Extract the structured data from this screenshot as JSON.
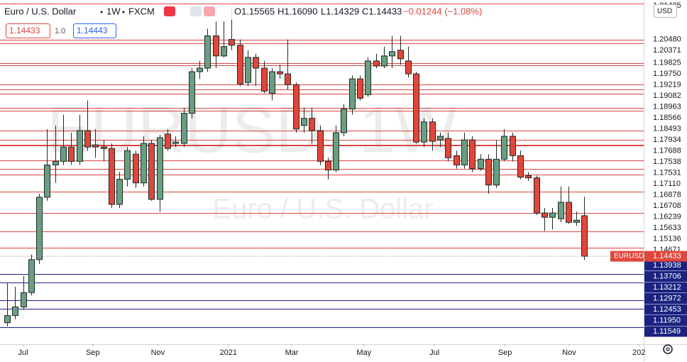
{
  "chart_data": {
    "type": "candlestick",
    "symbol_name": "Euro / U.S. Dollar",
    "interval": "1W",
    "source": "FXCM",
    "open": "O1.15565",
    "high": "H1.16090",
    "low": "L1.14329",
    "close": "C1.14433",
    "change": "−0.01244 (−1.08%)",
    "bid": 1.14433,
    "spread": "1.0",
    "ask": 1.14443,
    "currency": "USD",
    "symbol": "EURUSD",
    "watermark_title": "EURUSD, 1W",
    "watermark_subtitle": "Euro / U.S. Dollar",
    "up_color": "#6a9e80",
    "down_color": "#e0463b",
    "resistance_color": "#d9473f",
    "support_color": "#1a2380",
    "ylim": [
      1.1198,
      1.2158
    ],
    "xlim": [
      -0.885,
      79.4
    ],
    "yticks": [
      1.21485,
      {
        "value": 1.2048,
        "label": "1.20480"
      },
      1.20371,
      1.19825,
      {
        "value": 1.1975,
        "label": "1.19750"
      },
      1.19219,
      1.19082,
      1.18963,
      1.18566,
      1.18493,
      1.17934,
      1.17688,
      1.17538,
      1.17531,
      {
        "value": 1.1711,
        "label": "1.17110"
      },
      1.16878,
      1.16708,
      1.16239,
      1.15633,
      1.15136,
      1.14671,
      1.13938,
      1.13706,
      1.13212,
      1.12972,
      1.12453,
      {
        "value": 1.1195,
        "label": "1.11950"
      },
      1.11549
    ],
    "xticks": [
      {
        "value": 2.0,
        "label": "Jul"
      },
      {
        "value": 10.7,
        "label": "Sep"
      },
      {
        "value": 18.8,
        "label": "Nov"
      },
      {
        "value": 27.6,
        "label": "2021"
      },
      {
        "value": 35.5,
        "label": "Mar"
      },
      {
        "value": 44.5,
        "label": "May"
      },
      {
        "value": 53.3,
        "label": "Jul"
      },
      {
        "value": 62.1,
        "label": "Sep"
      },
      {
        "value": 70.1,
        "label": "Nov"
      },
      {
        "value": 78.8,
        "label": "202"
      }
    ],
    "candles": [
      [
        1.1258,
        1.1368,
        1.1248,
        1.1278
      ],
      [
        1.1278,
        1.1358,
        1.1268,
        1.1302
      ],
      [
        1.1302,
        1.1388,
        1.1294,
        1.1342
      ],
      [
        1.1342,
        1.1448,
        1.1334,
        1.1434
      ],
      [
        1.1434,
        1.1618,
        1.1422,
        1.1608
      ],
      [
        1.1608,
        1.1798,
        1.1598,
        1.1698
      ],
      [
        1.1698,
        1.1808,
        1.1648,
        1.1708
      ],
      [
        1.1708,
        1.1838,
        1.1698,
        1.1748
      ],
      [
        1.1748,
        1.1788,
        1.1698,
        1.1708
      ],
      [
        1.1708,
        1.1838,
        1.1698,
        1.1794
      ],
      [
        1.1794,
        1.1878,
        1.1738,
        1.1748
      ],
      [
        1.1754,
        1.1798,
        1.1718,
        1.1748
      ],
      [
        1.1748,
        1.1768,
        1.1708,
        1.1744
      ],
      [
        1.1744,
        1.1758,
        1.1578,
        1.1588
      ],
      [
        1.1588,
        1.1678,
        1.1578,
        1.1658
      ],
      [
        1.1658,
        1.1748,
        1.1638,
        1.1738
      ],
      [
        1.1728,
        1.1738,
        1.1634,
        1.1648
      ],
      [
        1.1648,
        1.1778,
        1.1638,
        1.1758
      ],
      [
        1.1758,
        1.1768,
        1.1598,
        1.1602
      ],
      [
        1.1602,
        1.1782,
        1.1568,
        1.1774
      ],
      [
        1.1784,
        1.1798,
        1.1738,
        1.1744
      ],
      [
        1.1758,
        1.1778,
        1.1748,
        1.1762
      ],
      [
        1.1758,
        1.1858,
        1.1748,
        1.1842
      ],
      [
        1.1842,
        1.1968,
        1.1828,
        1.1958
      ],
      [
        1.1958,
        1.1988,
        1.1938,
        1.1968
      ],
      [
        1.1968,
        1.2078,
        1.1958,
        1.2058
      ],
      [
        1.2058,
        1.2098,
        1.1968,
        1.2002
      ],
      [
        1.2002,
        1.2098,
        1.1998,
        1.2028
      ],
      [
        1.2048,
        1.2138,
        1.2018,
        1.2032
      ],
      [
        1.2032,
        1.2048,
        1.1918,
        1.1924
      ],
      [
        1.1928,
        1.2018,
        1.1918,
        1.1998
      ],
      [
        1.1998,
        1.2008,
        1.1918,
        1.1968
      ],
      [
        1.1968,
        1.1988,
        1.1898,
        1.1904
      ],
      [
        1.1898,
        1.1968,
        1.1878,
        1.1958
      ],
      [
        1.1958,
        1.1978,
        1.1938,
        1.1952
      ],
      [
        1.1952,
        1.2048,
        1.1908,
        1.1922
      ],
      [
        1.1922,
        1.1928,
        1.1788,
        1.1798
      ],
      [
        1.1808,
        1.1858,
        1.1788,
        1.1828
      ],
      [
        1.1828,
        1.1858,
        1.1758,
        1.1794
      ],
      [
        1.1794,
        1.1808,
        1.1698,
        1.1708
      ],
      [
        1.1708,
        1.1718,
        1.1658,
        1.1684
      ],
      [
        1.1684,
        1.1808,
        1.1678,
        1.1788
      ],
      [
        1.1788,
        1.1868,
        1.1778,
        1.1854
      ],
      [
        1.1854,
        1.1948,
        1.1838,
        1.1938
      ],
      [
        1.1938,
        1.1948,
        1.1878,
        1.1884
      ],
      [
        1.1894,
        1.1998,
        1.1888,
        1.1988
      ],
      [
        1.1988,
        1.2008,
        1.1968,
        1.1974
      ],
      [
        1.1974,
        1.2028,
        1.1968,
        1.2002
      ],
      [
        1.2002,
        1.2058,
        1.1968,
        1.2014
      ],
      [
        1.2018,
        1.2058,
        1.1978,
        1.1994
      ],
      [
        1.1988,
        1.2028,
        1.1942,
        1.1952
      ],
      [
        1.1952,
        1.1958,
        1.1758,
        1.1762
      ],
      [
        1.1762,
        1.1828,
        1.1748,
        1.1818
      ],
      [
        1.1818,
        1.1828,
        1.1738,
        1.1764
      ],
      [
        1.1768,
        1.1788,
        1.1748,
        1.1778
      ],
      [
        1.1772,
        1.1788,
        1.1708,
        1.1718
      ],
      [
        1.1724,
        1.1738,
        1.1688,
        1.1698
      ],
      [
        1.1698,
        1.1788,
        1.1688,
        1.1768
      ],
      [
        1.1768,
        1.1778,
        1.1678,
        1.1688
      ],
      [
        1.1688,
        1.1728,
        1.1682,
        1.1714
      ],
      [
        1.1714,
        1.1728,
        1.1618,
        1.1642
      ],
      [
        1.1642,
        1.1768,
        1.1634,
        1.1714
      ],
      [
        1.1714,
        1.1798,
        1.1708,
        1.1778
      ],
      [
        1.1778,
        1.1788,
        1.1708,
        1.1724
      ],
      [
        1.1724,
        1.1738,
        1.1658,
        1.1664
      ],
      [
        1.1668,
        1.1678,
        1.1654,
        1.1662
      ],
      [
        1.1662,
        1.1668,
        1.1558,
        1.1564
      ],
      [
        1.1564,
        1.1578,
        1.1514,
        1.1552
      ],
      [
        1.1552,
        1.1578,
        1.1518,
        1.1564
      ],
      [
        1.1548,
        1.1638,
        1.1538,
        1.1594
      ],
      [
        1.1594,
        1.1638,
        1.1534,
        1.1538
      ],
      [
        1.1538,
        1.1568,
        1.1528,
        1.1544
      ],
      [
        1.15565,
        1.1609,
        1.14329,
        1.14433
      ]
    ]
  }
}
